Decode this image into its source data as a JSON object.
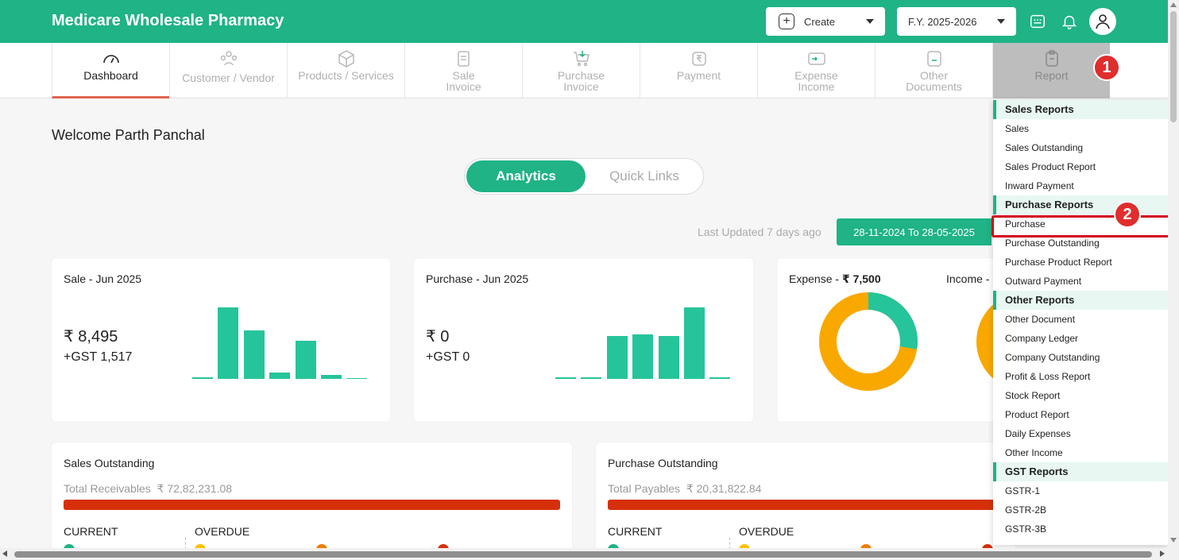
{
  "header": {
    "brand": "Medicare Wholesale Pharmacy",
    "create_label": "Create",
    "fy_label": "F.Y. 2025-2026"
  },
  "nav": {
    "items": [
      {
        "label": "Dashboard",
        "icon": "gauge-icon"
      },
      {
        "label": "Customer / Vendor",
        "icon": "people-icon"
      },
      {
        "label": "Products / Services",
        "icon": "box-icon"
      },
      {
        "label": "Sale Invoice",
        "icon": "invoice-icon"
      },
      {
        "label": "Purchase Invoice",
        "icon": "cart-icon"
      },
      {
        "label": "Payment",
        "icon": "rupee-icon"
      },
      {
        "label": "Expense Income",
        "icon": "wallet-icon"
      },
      {
        "label": "Other Documents",
        "icon": "document-icon"
      },
      {
        "label": "Report",
        "icon": "clipboard-icon"
      }
    ]
  },
  "annotations": {
    "badge1": "1",
    "badge2": "2"
  },
  "main": {
    "welcome": "Welcome Parth Panchal",
    "tab_analytics": "Analytics",
    "tab_quick": "Quick Links",
    "last_updated": "Last Updated 7 days ago",
    "date_range": "28-11-2024 To 28-05-2025"
  },
  "cards": {
    "sale": {
      "title": "Sale - Jun 2025",
      "amount": "₹ 8,495",
      "gst": "+GST 1,517",
      "bars": [
        0.02,
        1.0,
        0.68,
        0.09,
        0.53,
        0.06,
        0.01
      ]
    },
    "purchase": {
      "title": "Purchase - Jun 2025",
      "amount": "₹ 0",
      "gst": "+GST 0",
      "bars": [
        0.02,
        0.02,
        0.6,
        0.62,
        0.6,
        1.0,
        0.02
      ]
    },
    "expense": {
      "label": "Expense - ",
      "value": "₹ 7,500",
      "income_label": "Income -"
    },
    "sales_outstanding": {
      "title": "Sales Outstanding",
      "total_label": "Total Receivables",
      "total_value": "₹ 72,82,231.08",
      "current": "CURRENT",
      "overdue": "OVERDUE"
    },
    "purchase_outstanding": {
      "title": "Purchase Outstanding",
      "total_label": "Total Payables",
      "total_value": "₹ 20,31,822.84",
      "current": "CURRENT",
      "overdue": "OVERDUE"
    }
  },
  "colors": {
    "brand": "#1fb386",
    "bar": "#26c49a",
    "donut_orange": "#f9a800",
    "outstanding": "#d6300b",
    "highlight": "#d0021b"
  },
  "report_menu": [
    {
      "type": "section",
      "label": "Sales Reports"
    },
    {
      "type": "item",
      "label": "Sales"
    },
    {
      "type": "item",
      "label": "Sales Outstanding"
    },
    {
      "type": "item",
      "label": "Sales Product Report"
    },
    {
      "type": "item",
      "label": "Inward Payment"
    },
    {
      "type": "section",
      "label": "Purchase Reports"
    },
    {
      "type": "item",
      "label": "Purchase"
    },
    {
      "type": "item",
      "label": "Purchase Outstanding"
    },
    {
      "type": "item",
      "label": "Purchase Product Report"
    },
    {
      "type": "item",
      "label": "Outward Payment"
    },
    {
      "type": "section",
      "label": "Other Reports"
    },
    {
      "type": "item",
      "label": "Other Document"
    },
    {
      "type": "item",
      "label": "Company Ledger"
    },
    {
      "type": "item",
      "label": "Company Outstanding"
    },
    {
      "type": "item",
      "label": "Profit & Loss Report"
    },
    {
      "type": "item",
      "label": "Stock Report"
    },
    {
      "type": "item",
      "label": "Product Report"
    },
    {
      "type": "item",
      "label": "Daily Expenses"
    },
    {
      "type": "item",
      "label": "Other Income"
    },
    {
      "type": "section",
      "label": "GST Reports"
    },
    {
      "type": "item",
      "label": "GSTR-1"
    },
    {
      "type": "item",
      "label": "GSTR-2B"
    },
    {
      "type": "item",
      "label": "GSTR-3B"
    }
  ]
}
